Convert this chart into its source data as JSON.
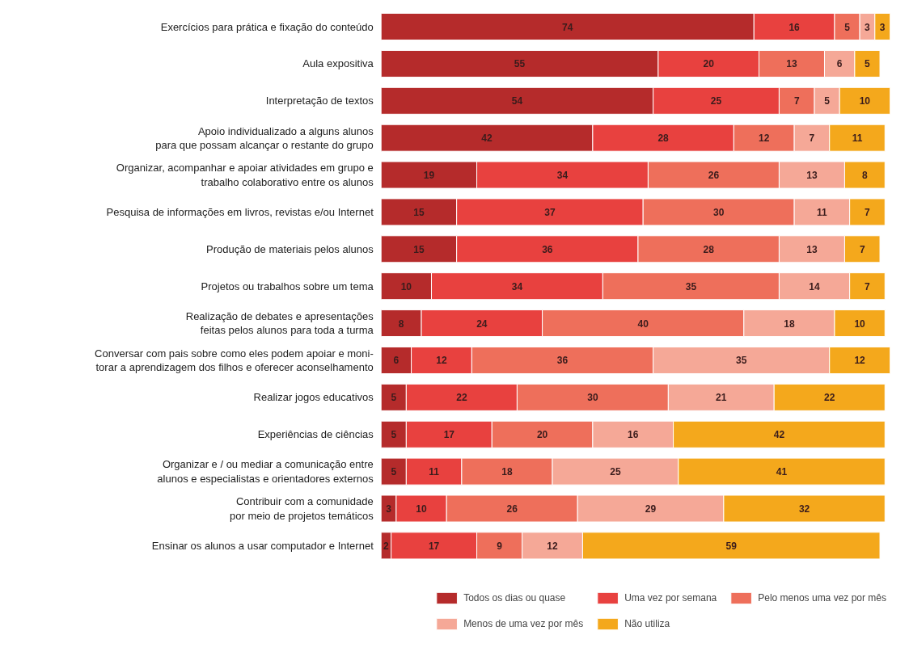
{
  "chart_data": {
    "type": "bar",
    "orientation": "horizontal",
    "stacked": true,
    "data_labels": true,
    "grid": false,
    "legend": "bottom right",
    "tick_labels": "y",
    "categories": [
      "Exercícios para prática e fixação do conteúdo",
      "Aula expositiva",
      "Interpretação de textos",
      "Apoio individualizado a alguns alunos\npara que possam alcançar o restante do grupo",
      "Organizar, acompanhar e apoiar atividades em grupo e\ntrabalho colaborativo entre os alunos",
      "Pesquisa de informações em livros, revistas e/ou Internet",
      "Produção de materiais pelos alunos",
      "Projetos ou trabalhos sobre um tema",
      "Realização de debates e apresentações\nfeitas pelos alunos para toda a turma",
      "Conversar com pais sobre como eles podem apoiar e moni-\ntorar a aprendizagem dos filhos e oferecer aconselhamento",
      "Realizar jogos educativos",
      "Experiências de ciências",
      "Organizar e / ou mediar a comunicação entre\nalunos e especialistas e orientadores externos",
      "Contribuir com a comunidade\npor meio de projetos temáticos",
      "Ensinar os alunos a usar computador e Internet"
    ],
    "series": [
      {
        "name": "Todos os dias ou quase",
        "color": "#b52b2b",
        "values": [
          74,
          55,
          54,
          42,
          19,
          15,
          15,
          10,
          8,
          6,
          5,
          5,
          5,
          3,
          2
        ]
      },
      {
        "name": "Uma vez por semana",
        "color": "#e8413f",
        "values": [
          16,
          20,
          25,
          28,
          34,
          37,
          36,
          34,
          24,
          12,
          22,
          17,
          11,
          10,
          17
        ]
      },
      {
        "name": "Pelo menos uma vez por mês",
        "color": "#ee6f5b",
        "values": [
          5,
          13,
          7,
          12,
          26,
          30,
          28,
          35,
          40,
          36,
          30,
          20,
          18,
          26,
          9
        ]
      },
      {
        "name": "Menos de uma vez por mês",
        "color": "#f5a897",
        "values": [
          3,
          6,
          5,
          7,
          13,
          11,
          13,
          14,
          18,
          35,
          21,
          16,
          25,
          29,
          12
        ]
      },
      {
        "name": "Não utiliza",
        "color": "#f4a81c",
        "values": [
          3,
          5,
          10,
          11,
          8,
          7,
          7,
          7,
          10,
          12,
          22,
          42,
          41,
          32,
          59
        ]
      }
    ]
  }
}
